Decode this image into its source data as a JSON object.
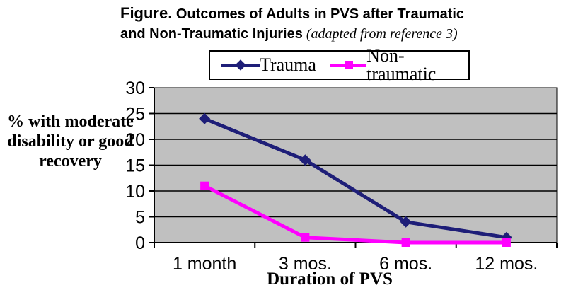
{
  "header": {
    "figure_label": "Figure.",
    "title_line1": "Outcomes of Adults in PVS after Traumatic",
    "title_line2": "and Non-Traumatic Injuries",
    "title_note": "(adapted from reference 3)"
  },
  "y_axis_label": "% with moderate\ndisability or good\nrecovery",
  "x_axis_title": "Duration of PVS",
  "chart_data": {
    "type": "line",
    "title": "Figure. Outcomes of Adults in PVS after Traumatic and Non-Traumatic Injuries (adapted from reference 3)",
    "categories": [
      "1 month",
      "3 mos.",
      "6 mos.",
      "12 mos."
    ],
    "series": [
      {
        "name": "Trauma",
        "color": "#1E1E78",
        "marker": "diamond",
        "values": [
          24,
          16,
          4,
          1
        ]
      },
      {
        "name": "Non-traumatic",
        "color": "#FF00FF",
        "marker": "square",
        "values": [
          11,
          1,
          0,
          0
        ]
      }
    ],
    "xlabel": "Duration of PVS",
    "ylabel": "% with moderate disability or good recovery",
    "ylim": [
      0,
      30
    ],
    "yticks": [
      0,
      5,
      10,
      15,
      20,
      25,
      30
    ],
    "grid": "horizontal",
    "plot_bg": "#C0C0C0",
    "axis_color": "#000000",
    "legend_position": "top"
  }
}
